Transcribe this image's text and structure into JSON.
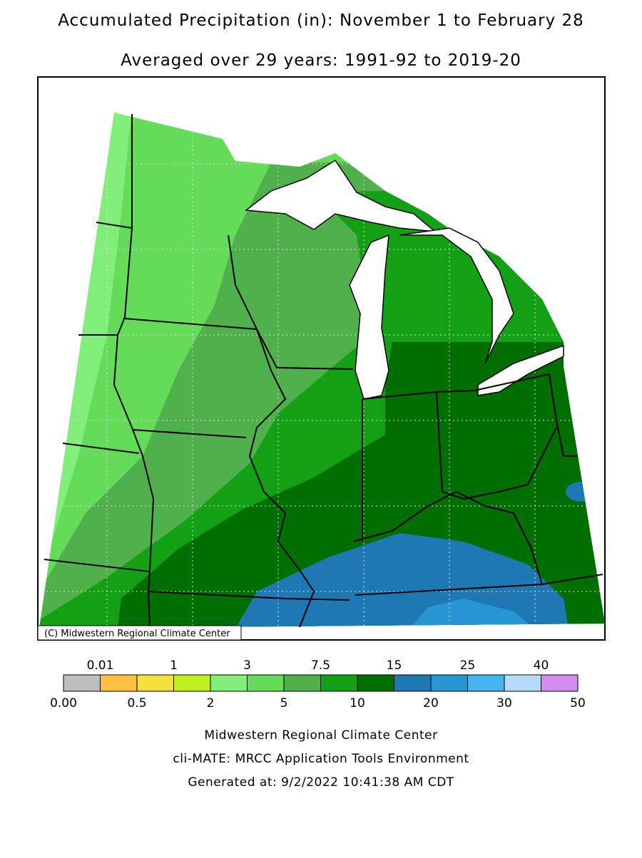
{
  "header": {
    "title": "Accumulated Precipitation (in): November 1 to February 28",
    "subtitle": "Averaged over 29 years: 1991-92 to 2019-20"
  },
  "map": {
    "credit": "(C) Midwestern Regional Climate Center"
  },
  "legend": {
    "colors": [
      "#bebebe",
      "#ffbf40",
      "#f5e040",
      "#c0f020",
      "#80ee78",
      "#64dc5a",
      "#50b04c",
      "#14a014",
      "#006e00",
      "#1e78b4",
      "#2896d2",
      "#46b4f0",
      "#b4dcfa",
      "#d28cf0"
    ],
    "top_labels": [
      "0.01",
      "1",
      "3",
      "7.5",
      "15",
      "25",
      "40"
    ],
    "bottom_labels": [
      "0.00",
      "0.5",
      "2",
      "5",
      "10",
      "20",
      "30",
      "50"
    ]
  },
  "footer": {
    "lines": [
      "Midwestern Regional Climate Center",
      "cli-MATE: MRCC Application Tools Environment",
      "Generated at: 9/2/2022 10:41:38 AM CDT"
    ]
  }
}
